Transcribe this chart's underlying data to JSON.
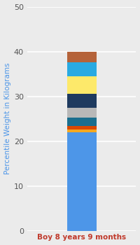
{
  "category": "Boy 8 years 9 months",
  "ylabel": "Percentile Weight in Kilograms",
  "ylim": [
    0,
    50
  ],
  "yticks": [
    0,
    10,
    20,
    30,
    40,
    50
  ],
  "segments": [
    {
      "value": 22.0,
      "color": "#4d96e8"
    },
    {
      "value": 0.6,
      "color": "#f5a820"
    },
    {
      "value": 0.8,
      "color": "#d94800"
    },
    {
      "value": 1.8,
      "color": "#1a6e8e"
    },
    {
      "value": 2.2,
      "color": "#b8b8b8"
    },
    {
      "value": 3.2,
      "color": "#1e3a5f"
    },
    {
      "value": 3.8,
      "color": "#fde96a"
    },
    {
      "value": 3.2,
      "color": "#29aae2"
    },
    {
      "value": 2.4,
      "color": "#b5633a"
    }
  ],
  "background_color": "#ebebeb",
  "label_fontsize": 7.5,
  "tick_fontsize": 8,
  "ylabel_color": "#4d96e8",
  "xlabel_color": "#c0392b",
  "bar_width": 0.35,
  "xlim": [
    -0.5,
    0.8
  ],
  "grid_color": "#ffffff",
  "grid_linewidth": 1.2
}
